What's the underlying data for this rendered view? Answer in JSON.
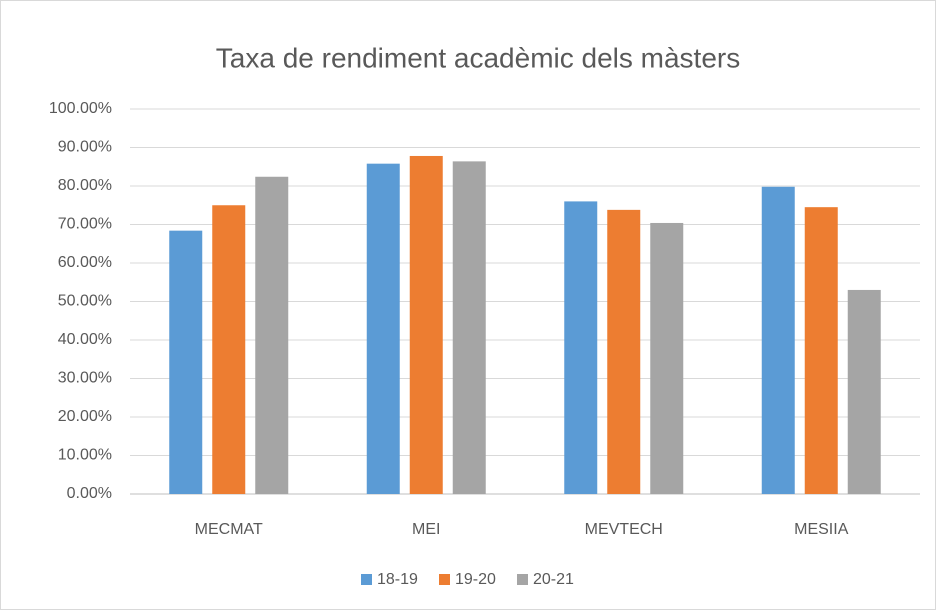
{
  "chart_data": {
    "type": "bar",
    "title": "Taxa de rendiment acadèmic dels màsters",
    "categories": [
      "MECMAT",
      "MEI",
      "MEVTECH",
      "MESIIA"
    ],
    "series": [
      {
        "name": "18-19",
        "color": "#5b9bd5",
        "values": [
          68.4,
          85.8,
          76.0,
          79.8
        ]
      },
      {
        "name": "19-20",
        "color": "#ed7d31",
        "values": [
          75.0,
          87.8,
          73.8,
          74.5
        ]
      },
      {
        "name": "20-21",
        "color": "#a5a5a5",
        "values": [
          82.4,
          86.4,
          70.4,
          53.0
        ]
      }
    ],
    "ylim": [
      0,
      100
    ],
    "yticks": [
      {
        "value": 0,
        "label": "0.00%"
      },
      {
        "value": 10,
        "label": "10.00%"
      },
      {
        "value": 20,
        "label": "20.00%"
      },
      {
        "value": 30,
        "label": "30.00%"
      },
      {
        "value": 40,
        "label": "40.00%"
      },
      {
        "value": 50,
        "label": "50.00%"
      },
      {
        "value": 60,
        "label": "60.00%"
      },
      {
        "value": 70,
        "label": "70.00%"
      },
      {
        "value": 80,
        "label": "80.00%"
      },
      {
        "value": 90,
        "label": "90.00%"
      },
      {
        "value": 100,
        "label": "100.00%"
      }
    ],
    "grid": true,
    "legend": "bottom"
  }
}
